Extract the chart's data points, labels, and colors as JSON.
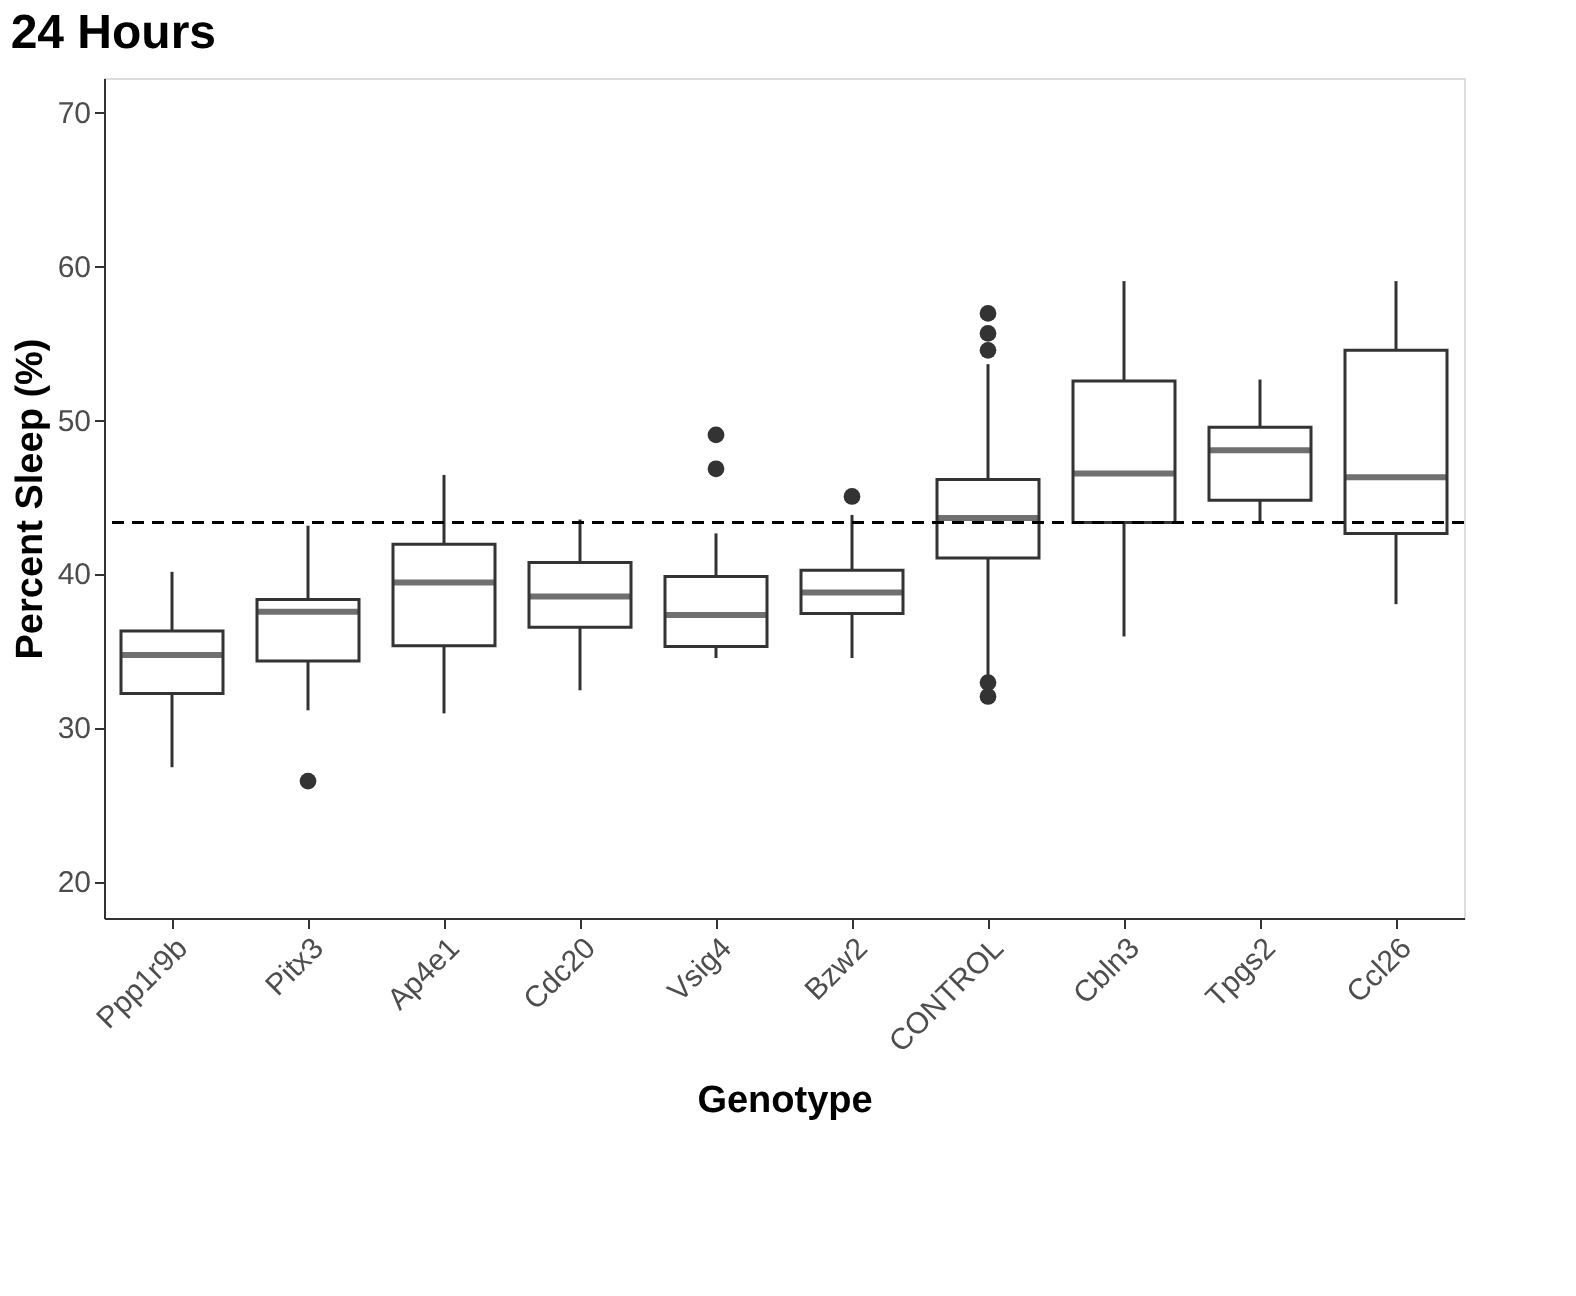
{
  "chart_data": {
    "type": "box",
    "title": "24 Hours",
    "xlabel": "Genotype",
    "ylabel": "Percent Sleep (%)",
    "categories": [
      "Ppp1r9b",
      "Pitx3",
      "Ap4e1",
      "Cdc20",
      "Vsig4",
      "Bzw2",
      "CONTROL",
      "Cbln3",
      "Tpgs2",
      "Ccl26"
    ],
    "boxes": [
      {
        "low": 27.4,
        "q1": 32.2,
        "median": 34.7,
        "q3": 36.25,
        "high": 40.1
      },
      {
        "low": 31.1,
        "q1": 34.3,
        "median": 37.5,
        "q3": 38.3,
        "high": 43.1,
        "outliers": [
          26.5
        ]
      },
      {
        "low": 30.9,
        "q1": 35.3,
        "median": 39.4,
        "q3": 41.9,
        "high": 46.4
      },
      {
        "low": 32.4,
        "q1": 36.5,
        "median": 38.5,
        "q3": 40.7,
        "high": 43.5
      },
      {
        "low": 34.5,
        "q1": 35.25,
        "median": 37.3,
        "q3": 39.8,
        "high": 42.6,
        "outliers": [
          46.8,
          49.0
        ]
      },
      {
        "low": 34.5,
        "q1": 37.4,
        "median": 38.75,
        "q3": 40.2,
        "high": 43.8,
        "outliers": [
          45.0
        ]
      },
      {
        "low": 33.4,
        "q1": 41.0,
        "median": 43.6,
        "q3": 46.1,
        "high": 53.6,
        "outliers": [
          54.5,
          55.6,
          56.9,
          32.9,
          32.0
        ]
      },
      {
        "low": 35.9,
        "q1": 43.3,
        "median": 46.5,
        "q3": 52.5,
        "high": 59.0
      },
      {
        "low": 43.3,
        "q1": 44.75,
        "median": 48.0,
        "q3": 49.5,
        "high": 52.6
      },
      {
        "low": 38.0,
        "q1": 42.6,
        "median": 46.25,
        "q3": 54.5,
        "high": 59.0
      }
    ],
    "ylim": [
      17.6,
      72.2
    ],
    "yticks": [
      20,
      30,
      40,
      50,
      60,
      70
    ],
    "ref_lines": [
      {
        "axis": "y",
        "value": 43.3,
        "line_style": "dashed",
        "color": "#000000"
      }
    ]
  }
}
